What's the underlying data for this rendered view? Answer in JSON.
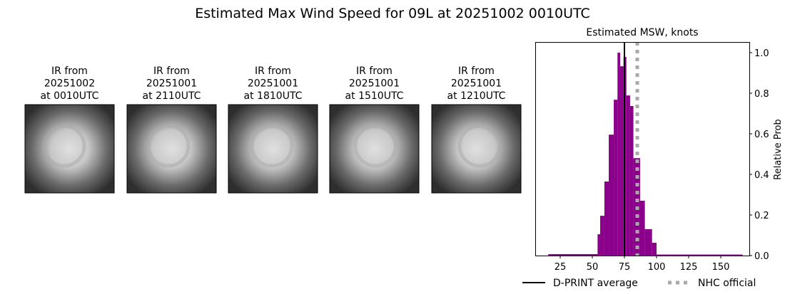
{
  "title": "Estimated Max Wind Speed for 09L at 20251002 0010UTC",
  "ir_panels": [
    {
      "line1": "IR from",
      "line2": "20251002",
      "line3": "at 0010UTC"
    },
    {
      "line1": "IR from",
      "line2": "20251001",
      "line3": "at 2110UTC"
    },
    {
      "line1": "IR from",
      "line2": "20251001",
      "line3": "at 1810UTC"
    },
    {
      "line1": "IR from",
      "line2": "20251001",
      "line3": "at 1510UTC"
    },
    {
      "line1": "IR from",
      "line2": "20251001",
      "line3": "at 1210UTC"
    }
  ],
  "chart_data": {
    "type": "bar",
    "title": "Estimated MSW, knots",
    "xlabel": "",
    "ylabel": "Relative Prob",
    "xlim": [
      6,
      173
    ],
    "ylim": [
      0,
      1.05
    ],
    "xticks": [
      25,
      50,
      75,
      100,
      125,
      150
    ],
    "yticks": [
      "0.0",
      "0.2",
      "0.4",
      "0.6",
      "0.8",
      "1.0"
    ],
    "bar_color": "#8b008b",
    "bins": [
      {
        "x0": 15.7,
        "x1": 54.1,
        "value": 0.007
      },
      {
        "x0": 54.1,
        "x1": 56.1,
        "value": 0.105
      },
      {
        "x0": 56.1,
        "x1": 59.4,
        "value": 0.196
      },
      {
        "x0": 59.4,
        "x1": 62.8,
        "value": 0.365
      },
      {
        "x0": 62.8,
        "x1": 66.7,
        "value": 0.596
      },
      {
        "x0": 66.7,
        "x1": 69.6,
        "value": 0.768
      },
      {
        "x0": 69.6,
        "x1": 71.7,
        "value": 1.0
      },
      {
        "x0": 71.7,
        "x1": 74.3,
        "value": 0.933
      },
      {
        "x0": 74.3,
        "x1": 76.5,
        "value": 0.979
      },
      {
        "x0": 76.5,
        "x1": 79.4,
        "value": 0.789
      },
      {
        "x0": 79.4,
        "x1": 82.0,
        "value": 0.737
      },
      {
        "x0": 82.0,
        "x1": 87.2,
        "value": 0.48
      },
      {
        "x0": 87.2,
        "x1": 90.9,
        "value": 0.27
      },
      {
        "x0": 90.9,
        "x1": 96.5,
        "value": 0.13
      },
      {
        "x0": 96.5,
        "x1": 100.0,
        "value": 0.063
      },
      {
        "x0": 100.0,
        "x1": 167.0,
        "value": 0.005
      }
    ],
    "dprint_average": 75,
    "nhc_official": 85,
    "legend": [
      {
        "label": "D-PRINT average",
        "color": "#000000",
        "style": "solid"
      },
      {
        "label": "NHC official",
        "color": "#a9a9a9",
        "style": "dotted"
      }
    ],
    "legend_placement": "bottom"
  }
}
